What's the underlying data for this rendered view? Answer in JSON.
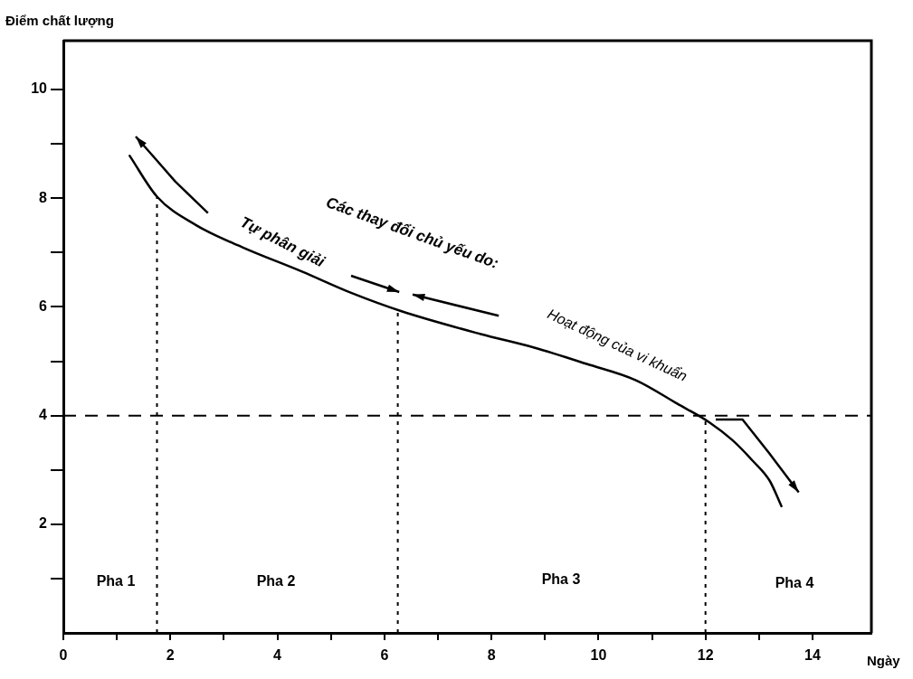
{
  "chart_data": {
    "type": "line",
    "xlabel": "Ngày",
    "ylabel": "Điểm chất lượng",
    "x": [
      1.24,
      1.75,
      2.49,
      3.34,
      4.46,
      5.4,
      6.32,
      7.8,
      8.8,
      9.78,
      10.7,
      11.47,
      12.08,
      12.5,
      12.88,
      13.2,
      13.42
    ],
    "series": [
      {
        "color": "#000000",
        "values": [
          8.78,
          8.03,
          7.5,
          7.1,
          6.65,
          6.25,
          5.92,
          5.5,
          5.25,
          4.95,
          4.65,
          4.22,
          3.87,
          3.55,
          3.17,
          2.8,
          2.33
        ]
      }
    ],
    "xlim": [
      0,
      15.1
    ],
    "ylim": [
      0,
      10.9
    ],
    "xticks": [
      0,
      {
        "value": 1,
        "label": null
      },
      2,
      {
        "value": 3,
        "label": null
      },
      4,
      {
        "value": 5,
        "label": null
      },
      6,
      {
        "value": 7,
        "label": null
      },
      8,
      {
        "value": 9,
        "label": null
      },
      10,
      {
        "value": 11,
        "label": null
      },
      12,
      {
        "value": 13,
        "label": null
      },
      14
    ],
    "yticks": [
      {
        "value": 1,
        "label": null
      },
      2,
      {
        "value": 3,
        "label": null
      },
      4,
      {
        "value": 5,
        "label": null
      },
      6,
      {
        "value": 7,
        "label": null
      },
      8,
      {
        "value": 9,
        "label": null
      },
      10
    ],
    "ref_lines": [
      {
        "axis": "x",
        "value": 1.75,
        "line_style": "dotted"
      },
      {
        "axis": "x",
        "value": 6.25,
        "line_style": "dotted"
      },
      {
        "axis": "x",
        "value": 12,
        "line_style": "dotted"
      },
      {
        "axis": "y",
        "value": 4,
        "line_style": "dashed"
      }
    ],
    "annotations": [
      "Các thay đổi chủ yếu do:",
      "Tự phân giải",
      "Hoạt động của vi khuẩn",
      "Pha 1",
      "Pha 2",
      "Pha 3",
      "Pha 4"
    ],
    "legend": false,
    "marker": "none",
    "line_style": "solid"
  }
}
